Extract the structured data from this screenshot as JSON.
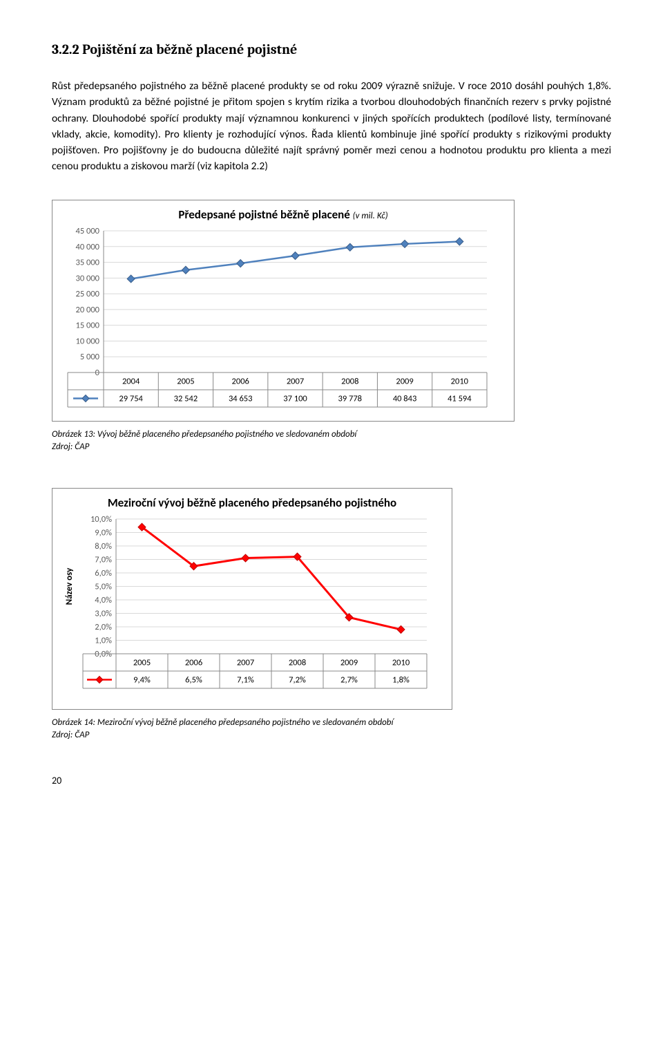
{
  "heading": "3.2.2 Pojištění za běžně placené pojistné",
  "body": "Růst předepsaného pojistného za běžně placené produkty se od roku 2009 výrazně snižuje. V roce 2010 dosáhl pouhých 1,8%. Význam produktů za běžné pojistné je přitom spojen s krytím rizika a tvorbou dlouhodobých finančních rezerv s prvky pojistné ochrany. Dlouhodobé spořící produkty mají významnou konkurenci v jiných spořících produktech (podílové listy, termínované vklady, akcie, komodity). Pro klienty je rozhodující výnos. Řada klientů kombinuje jiné spořící produkty s rizikovými produkty pojišťoven. Pro pojišťovny je do budoucna důležité najít správný poměr mezi cenou a hodnotou produktu pro klienta a mezi cenou produktu a ziskovou marží (viz kapitola 2.2)",
  "chart1": {
    "title_main": "Předepsané pojistné běžně placené ",
    "title_sub": "(v mil. Kč)",
    "categories": [
      "2004",
      "2005",
      "2006",
      "2007",
      "2008",
      "2009",
      "2010"
    ],
    "values": [
      29754,
      32542,
      34653,
      37100,
      39778,
      40843,
      41594
    ],
    "value_labels": [
      "29 754",
      "32 542",
      "34 653",
      "37 100",
      "39 778",
      "40 843",
      "41 594"
    ],
    "y_ticks": [
      0,
      5000,
      10000,
      15000,
      20000,
      25000,
      30000,
      35000,
      40000,
      45000
    ],
    "y_tick_labels": [
      "0",
      "5 000",
      "10 000",
      "15 000",
      "20 000",
      "25 000",
      "30 000",
      "35 000",
      "40 000",
      "45 000"
    ],
    "line_color": "#4f81bd",
    "marker_color": "#4f81bd",
    "marker_border": "#385d8a",
    "legend_icon_line": "#4f81bd"
  },
  "caption1_line1": "Obrázek 13: Vývoj běžně placeného předepsaného pojistného ve sledovaném období",
  "caption1_line2": "Zdroj: ČAP",
  "chart2": {
    "title": "Meziroční vývoj běžně placeného předepsaného pojistného",
    "y_axis_title": "Název osy",
    "categories": [
      "2005",
      "2006",
      "2007",
      "2008",
      "2009",
      "2010"
    ],
    "values": [
      9.4,
      6.5,
      7.1,
      7.2,
      2.7,
      1.8
    ],
    "value_labels": [
      "9,4%",
      "6,5%",
      "7,1%",
      "7,2%",
      "2,7%",
      "1,8%"
    ],
    "y_ticks": [
      0,
      1,
      2,
      3,
      4,
      5,
      6,
      7,
      8,
      9,
      10
    ],
    "y_tick_labels": [
      "0,0%",
      "1,0%",
      "2,0%",
      "3,0%",
      "4,0%",
      "5,0%",
      "6,0%",
      "7,0%",
      "8,0%",
      "9,0%",
      "10,0%"
    ],
    "line_color": "#ff0000",
    "marker_color": "#ff0000",
    "marker_border": "#c00000"
  },
  "caption2_line1": "Obrázek 14: Meziroční vývoj běžně placeného předepsaného pojistného ve sledovaném období",
  "caption2_line2": "Zdroj: ČAP",
  "page_number": "20"
}
